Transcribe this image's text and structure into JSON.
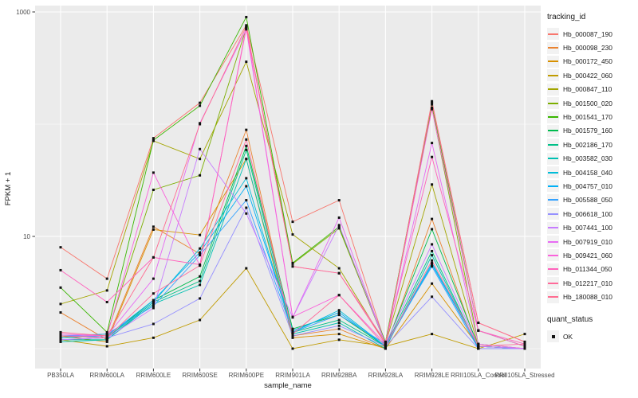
{
  "figure": {
    "y_axis_title": "FPKM + 1",
    "x_axis_title": "sample_name",
    "legend_title": "tracking_id",
    "quant_legend_title": "quant_status",
    "quant_legend_entry": "OK"
  },
  "style_colors": {
    "panel_bg": "#EBEBEB",
    "grid": "#FFFFFF",
    "axis_text": "#4D4D4D",
    "point": "#111111",
    "legend_key_bg": "#F2F2F2"
  },
  "chart_data": {
    "type": "line",
    "title": "",
    "xlabel": "sample_name",
    "ylabel": "FPKM + 1",
    "y_scale": "log10",
    "y_tick_values": [
      10,
      1000
    ],
    "y_tick_labels": [
      "10",
      "1000"
    ],
    "y_minor_values": [
      1,
      100
    ],
    "ylim": [
      0.66,
      1130
    ],
    "grid": true,
    "legend_position": "right",
    "point_marker": "small-black-square",
    "categories": [
      "PB350LA",
      "RRIM600LA",
      "RRIM600LE",
      "RRIM600SE",
      "RRIM600PE",
      "RRIM901LA",
      "RRIM928BA",
      "RRIM928LA",
      "RRIM928LE",
      "RRII105LA_Control",
      "RRII105LA_Stressed"
    ],
    "series": [
      {
        "name": "Hb_000087_190",
        "color": "#F8766D",
        "values": [
          8,
          4.2,
          75,
          155,
          760,
          13.5,
          21,
          1.1,
          160,
          1.7,
          1.15
        ]
      },
      {
        "name": "Hb_000098_230",
        "color": "#EA8331",
        "values": [
          2.1,
          1.2,
          12.2,
          7.0,
          89,
          1.3,
          1.5,
          1.0,
          14.3,
          1.0,
          1.0
        ]
      },
      {
        "name": "Hb_000172_450",
        "color": "#D89000",
        "values": [
          1.3,
          1.15,
          11.5,
          10.3,
          49,
          1.25,
          1.35,
          1.0,
          3.8,
          1.05,
          1.0
        ]
      },
      {
        "name": "Hb_000422_060",
        "color": "#C09B00",
        "values": [
          1.2,
          1.05,
          1.25,
          1.8,
          5.2,
          1.0,
          1.2,
          1.05,
          1.35,
          1.0,
          1.35
        ]
      },
      {
        "name": "Hb_000847_110",
        "color": "#A3A500",
        "values": [
          2.5,
          3.3,
          71,
          49,
          360,
          10.4,
          5.2,
          1.1,
          29,
          1.05,
          1.0
        ]
      },
      {
        "name": "Hb_001500_020",
        "color": "#7CAE00",
        "values": [
          1.25,
          1.35,
          26,
          35,
          720,
          5.7,
          11.8,
          1.1,
          140,
          1.1,
          1.0
        ]
      },
      {
        "name": "Hb_001541_170",
        "color": "#39B600",
        "values": [
          3.5,
          1.4,
          72,
          146,
          900,
          5.8,
          12.2,
          1.15,
          150,
          1.45,
          1.05
        ]
      },
      {
        "name": "Hb_001579_160",
        "color": "#00BB4E",
        "values": [
          1.3,
          1.25,
          2.7,
          4.4,
          64,
          1.5,
          2.0,
          1.05,
          11.6,
          1.05,
          1.0
        ]
      },
      {
        "name": "Hb_002186_170",
        "color": "#00C087",
        "values": [
          1.2,
          1.2,
          2.6,
          4.0,
          59,
          1.4,
          1.8,
          1.05,
          7.4,
          1.0,
          1.0
        ]
      },
      {
        "name": "Hb_003582_030",
        "color": "#00C0B2",
        "values": [
          1.15,
          1.2,
          2.5,
          3.7,
          49,
          1.35,
          1.7,
          1.0,
          6.8,
          1.0,
          1.0
        ]
      },
      {
        "name": "Hb_004158_040",
        "color": "#00BCD8",
        "values": [
          1.2,
          1.25,
          2.6,
          7.8,
          33,
          1.4,
          2.2,
          1.05,
          5.8,
          1.05,
          1.0
        ]
      },
      {
        "name": "Hb_004757_010",
        "color": "#00B0F6",
        "values": [
          1.25,
          1.3,
          2.7,
          7.2,
          28,
          1.45,
          2.1,
          1.05,
          5.6,
          1.05,
          1.0
        ]
      },
      {
        "name": "Hb_005588_050",
        "color": "#35A2FF",
        "values": [
          1.3,
          1.35,
          2.4,
          6.8,
          21,
          1.4,
          2.0,
          1.1,
          5.4,
          1.0,
          1.0
        ]
      },
      {
        "name": "Hb_006618_100",
        "color": "#9590FF",
        "values": [
          1.2,
          1.25,
          1.66,
          2.8,
          18,
          1.3,
          1.6,
          1.05,
          2.9,
          1.0,
          1.0
        ]
      },
      {
        "name": "Hb_007441_100",
        "color": "#C77CFF",
        "values": [
          1.2,
          1.25,
          2.3,
          60,
          16,
          1.9,
          12.6,
          1.1,
          8.5,
          1.05,
          1.0
        ]
      },
      {
        "name": "Hb_007919_010",
        "color": "#E76BF3",
        "values": [
          1.3,
          1.3,
          4.2,
          102,
          700,
          1.9,
          14.7,
          1.1,
          68,
          1.1,
          1.0
        ]
      },
      {
        "name": "Hb_009421_060",
        "color": "#FA62DB",
        "values": [
          1.35,
          1.3,
          37,
          5.5,
          730,
          1.92,
          3.0,
          1.1,
          136,
          1.45,
          1.05
        ]
      },
      {
        "name": "Hb_011344_050",
        "color": "#FF62BC",
        "values": [
          5.0,
          2.6,
          6.5,
          5.6,
          710,
          5.4,
          4.7,
          1.15,
          51,
          1.45,
          1.1
        ]
      },
      {
        "name": "Hb_012217_010",
        "color": "#FF6A9A",
        "values": [
          1.3,
          1.25,
          3.1,
          5.5,
          73,
          1.35,
          3.0,
          1.05,
          6.1,
          1.05,
          1.1
        ]
      },
      {
        "name": "Hb_180088_010",
        "color": "#FF6C91",
        "values": [
          1.4,
          1.3,
          6.5,
          100,
          740,
          5.4,
          4.7,
          1.1,
          155,
          1.7,
          1.15
        ]
      }
    ],
    "quant_status_legend": {
      "label": "OK"
    }
  }
}
